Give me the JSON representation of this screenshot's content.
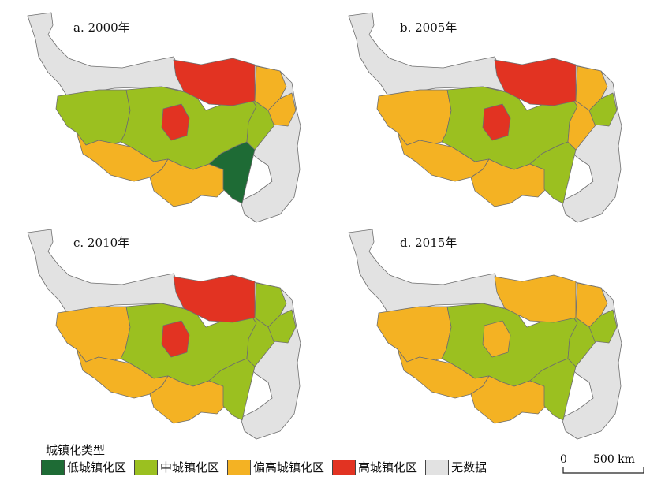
{
  "colors": {
    "low": "#1e6b35",
    "medium": "#9bc020",
    "high_medium": "#f4b223",
    "high": "#e23322",
    "nodata": "#e2e2e2",
    "border": "#6e6e6e"
  },
  "panels": [
    {
      "title": "a. 2000年",
      "regions": {
        "north": "nodata",
        "northmid": "high",
        "ne1": "high_medium",
        "ne2": "high_medium",
        "west": "medium",
        "center": "medium",
        "inner": "high",
        "south1": "high_medium",
        "south2": "high_medium",
        "southeast": "low",
        "east": "medium",
        "eastfar": "nodata"
      }
    },
    {
      "title": "b. 2005年",
      "regions": {
        "north": "nodata",
        "northmid": "high",
        "ne1": "high_medium",
        "ne2": "medium",
        "west": "high_medium",
        "center": "medium",
        "inner": "high",
        "south1": "high_medium",
        "south2": "high_medium",
        "southeast": "medium",
        "east": "high_medium",
        "eastfar": "nodata"
      }
    },
    {
      "title": "c. 2010年",
      "regions": {
        "north": "nodata",
        "northmid": "high",
        "ne1": "medium",
        "ne2": "medium",
        "west": "high_medium",
        "center": "medium",
        "inner": "high",
        "south1": "high_medium",
        "south2": "high_medium",
        "southeast": "medium",
        "east": "medium",
        "eastfar": "nodata"
      }
    },
    {
      "title": "d. 2015年",
      "regions": {
        "north": "nodata",
        "northmid": "high_medium",
        "ne1": "high_medium",
        "ne2": "medium",
        "west": "high_medium",
        "center": "medium",
        "inner": "high_medium",
        "south1": "high_medium",
        "south2": "high_medium",
        "southeast": "medium",
        "east": "medium",
        "eastfar": "nodata"
      }
    }
  ],
  "legend": {
    "title": "城镇化类型",
    "items": [
      {
        "key": "low",
        "label": "低城镇化区"
      },
      {
        "key": "medium",
        "label": "中城镇化区"
      },
      {
        "key": "high_medium",
        "label": "偏高城镇化区"
      },
      {
        "key": "high",
        "label": "高城镇化区"
      },
      {
        "key": "nodata",
        "label": "无数据"
      }
    ]
  },
  "scale": {
    "zero": "0",
    "distance": "500 km"
  }
}
